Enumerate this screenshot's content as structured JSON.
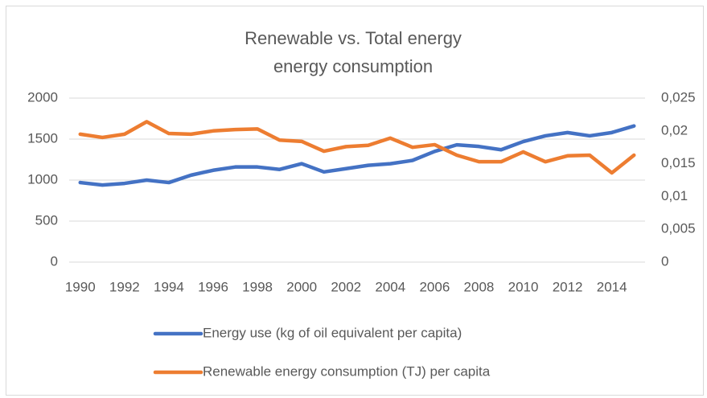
{
  "chart_data": {
    "type": "line",
    "title": "Renewable vs. Total energy energy consumption",
    "categories": [
      "1990",
      null,
      "1992",
      null,
      "1994",
      null,
      "1996",
      null,
      "1998",
      null,
      "2000",
      null,
      "2002",
      null,
      "2004",
      null,
      "2006",
      null,
      "2008",
      null,
      "2010",
      null,
      "2012",
      null,
      "2014",
      null
    ],
    "series": [
      {
        "name": "Energy use (kg of oil equivalent per capita)",
        "color": "#4472c4",
        "values": [
          970,
          940,
          960,
          1000,
          970,
          1060,
          1120,
          1160,
          1160,
          1130,
          1200,
          1100,
          1140,
          1180,
          1200,
          1240,
          1350,
          1430,
          1410,
          1370,
          1470,
          1540,
          1580,
          1540,
          1580,
          1660
        ]
      },
      {
        "name": "Renewable energy consumption (TJ) per capita",
        "color": "#ed7d31",
        "axis": "y2",
        "values": [
          0.0195,
          0.019,
          0.0195,
          0.0214,
          0.0196,
          0.0195,
          0.02,
          0.0202,
          0.0203,
          0.0186,
          0.0184,
          0.0169,
          0.0176,
          0.0178,
          0.0189,
          0.0175,
          0.0179,
          0.0163,
          0.0153,
          0.0153,
          0.0168,
          0.0153,
          0.0162,
          0.0163,
          0.0136,
          0.0163
        ]
      }
    ],
    "ylim": [
      0,
      2000
    ],
    "yticks": [
      0,
      500,
      1000,
      1500,
      2000
    ],
    "y2lim": [
      0,
      0.025
    ],
    "y2ticks": [
      0,
      {
        "value": 0.005,
        "label": "0,005"
      },
      {
        "value": 0.01,
        "label": "0,01"
      },
      {
        "value": 0.015,
        "label": "0,015"
      },
      {
        "value": 0.02,
        "label": "0,02"
      },
      {
        "value": 0.025,
        "label": "0,025"
      }
    ],
    "grid": true,
    "legend": "bottom"
  }
}
